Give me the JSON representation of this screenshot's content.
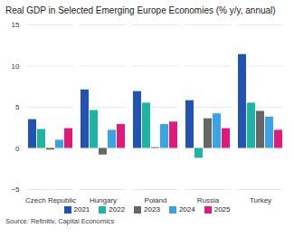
{
  "chart_data": {
    "type": "bar",
    "title": "Real GDP in Selected Emerging Europe Economies (% y/y, annual)",
    "source": "Source: Refinitiv, Capital Economics",
    "categories": [
      "Czech Republic",
      "Hungary",
      "Poland",
      "Russia",
      "Turkey"
    ],
    "series": [
      {
        "name": "2021",
        "color": "#2352b5",
        "values": [
          3.5,
          7.1,
          6.9,
          5.8,
          11.4
        ]
      },
      {
        "name": "2022",
        "color": "#1db3a5",
        "values": [
          2.3,
          4.6,
          5.5,
          -1.2,
          5.5
        ]
      },
      {
        "name": "2023",
        "color": "#666666",
        "values": [
          -0.2,
          -0.8,
          0.1,
          3.6,
          4.5
        ]
      },
      {
        "name": "2024",
        "color": "#3aa3e6",
        "values": [
          1.0,
          2.2,
          2.9,
          4.2,
          3.8
        ]
      },
      {
        "name": "2025",
        "color": "#e0197d",
        "values": [
          2.4,
          2.9,
          3.2,
          2.4,
          2.2
        ]
      }
    ],
    "ylim": [
      -5,
      15
    ],
    "yticks": [
      -5,
      0,
      5,
      10,
      15
    ],
    "grid": true,
    "legend": "bottom"
  }
}
